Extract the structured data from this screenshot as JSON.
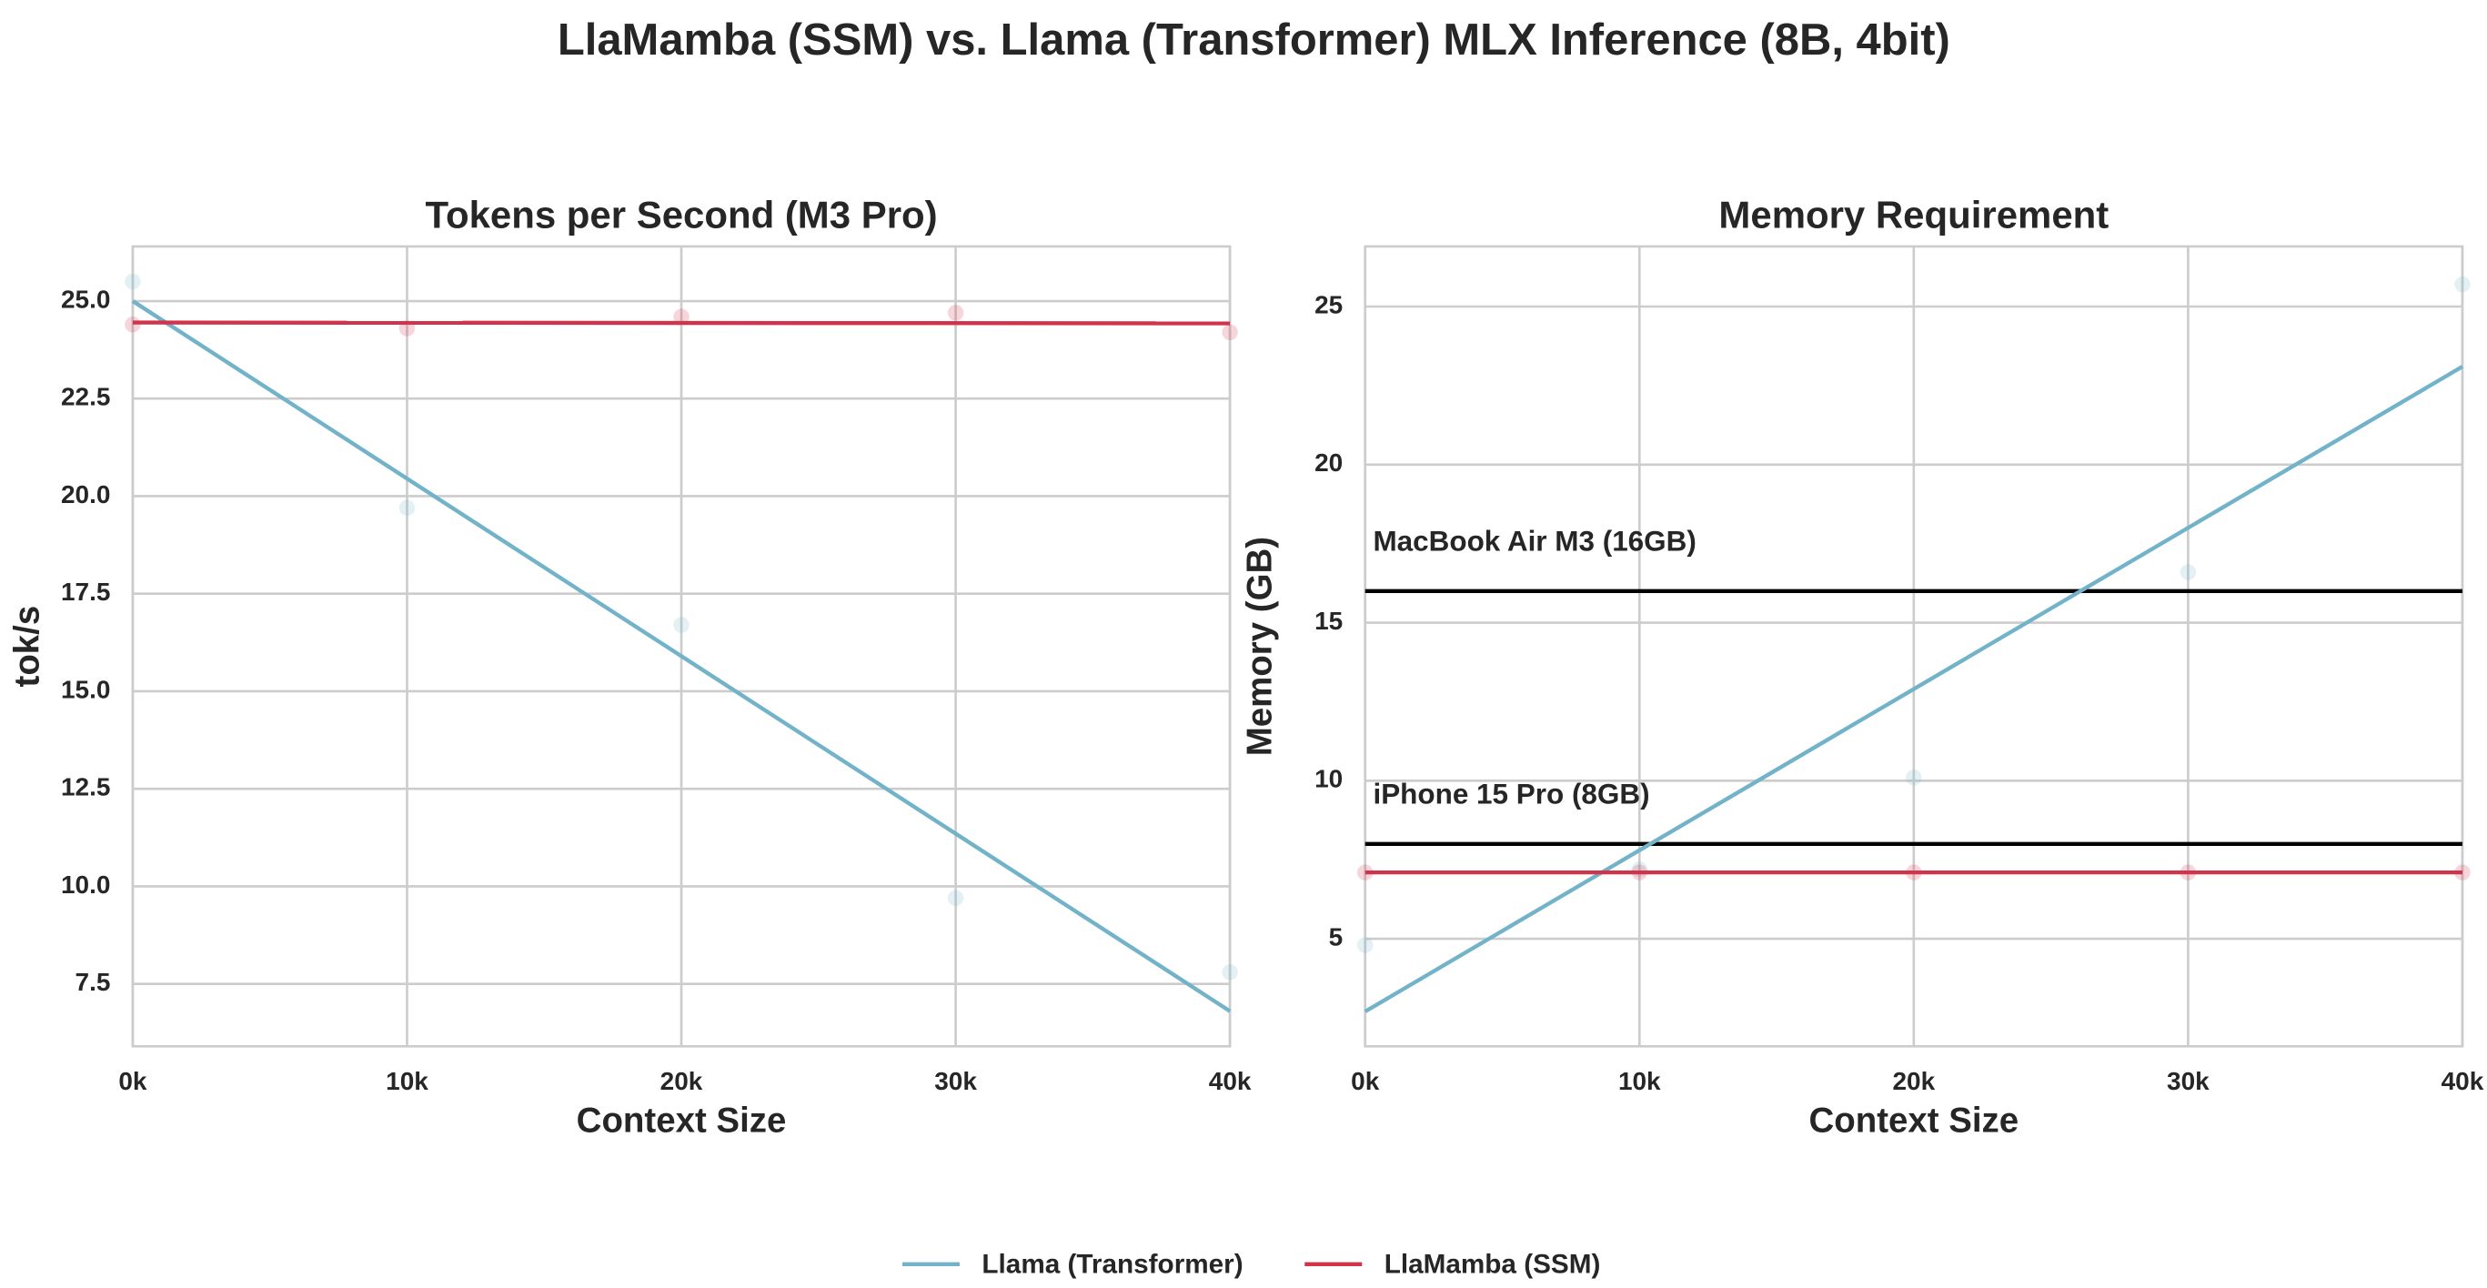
{
  "title": "LlaMamba (SSM) vs. Llama (Transformer) MLX Inference (8B, 4bit)",
  "legend": {
    "loc": "lower center",
    "items": [
      {
        "name": "Llama (Transformer)",
        "color": "#72b3c9"
      },
      {
        "name": "LlaMamba (SSM)",
        "color": "#d1334a"
      }
    ]
  },
  "chart_data": [
    {
      "type": "scatter",
      "title": "Tokens per Second (M3 Pro)",
      "x_label": "Context Size",
      "y_label": "tok/s",
      "grid": true,
      "x": [
        0,
        10000,
        20000,
        30000,
        40000
      ],
      "xlim": [
        0,
        40000
      ],
      "xticks": [
        {
          "value": 0,
          "label": "0k"
        },
        {
          "value": 10000,
          "label": "10k"
        },
        {
          "value": 20000,
          "label": "20k"
        },
        {
          "value": 30000,
          "label": "30k"
        },
        {
          "value": 40000,
          "label": "40k"
        }
      ],
      "ylim": [
        5.9,
        26.4
      ],
      "yticks": [
        7.5,
        {
          "value": 10,
          "label": "10.0"
        },
        12.5,
        {
          "value": 15,
          "label": "15.0"
        },
        17.5,
        {
          "value": 20,
          "label": "20.0"
        },
        22.5,
        {
          "value": 25,
          "label": "25.0"
        }
      ],
      "series": [
        {
          "values": [
            25.5,
            19.7,
            16.7,
            9.7,
            7.8
          ],
          "fit": [
            25.0,
            6.8
          ]
        },
        {
          "values": [
            24.4,
            24.3,
            24.6,
            24.7,
            24.2
          ],
          "fit": [
            24.45,
            24.43
          ]
        }
      ],
      "hlines": []
    },
    {
      "type": "scatter",
      "title": "Memory Requirement",
      "x_label": "Context Size",
      "y_label": "Memory (GB)",
      "grid": true,
      "x": [
        0,
        10000,
        20000,
        30000,
        40000
      ],
      "xlim": [
        0,
        40000
      ],
      "xticks": [
        {
          "value": 0,
          "label": "0k"
        },
        {
          "value": 10000,
          "label": "10k"
        },
        {
          "value": 20000,
          "label": "20k"
        },
        {
          "value": 30000,
          "label": "30k"
        },
        {
          "value": 40000,
          "label": "40k"
        }
      ],
      "ylim": [
        1.6,
        26.9
      ],
      "yticks": [
        5,
        10,
        15,
        20,
        25
      ],
      "series": [
        {
          "values": [
            4.8,
            7.2,
            10.1,
            16.6,
            25.7
          ],
          "fit": [
            2.7,
            23.1
          ]
        },
        {
          "values": [
            7.1,
            7.1,
            7.1,
            7.1,
            7.1
          ],
          "fit": [
            7.1,
            7.1
          ]
        }
      ],
      "hlines": [
        {
          "value": 16,
          "label": "MacBook Air M3 (16GB)",
          "color": "#000000"
        },
        {
          "value": 8,
          "label": "iPhone 15 Pro (8GB)",
          "color": "#000000"
        }
      ]
    }
  ]
}
